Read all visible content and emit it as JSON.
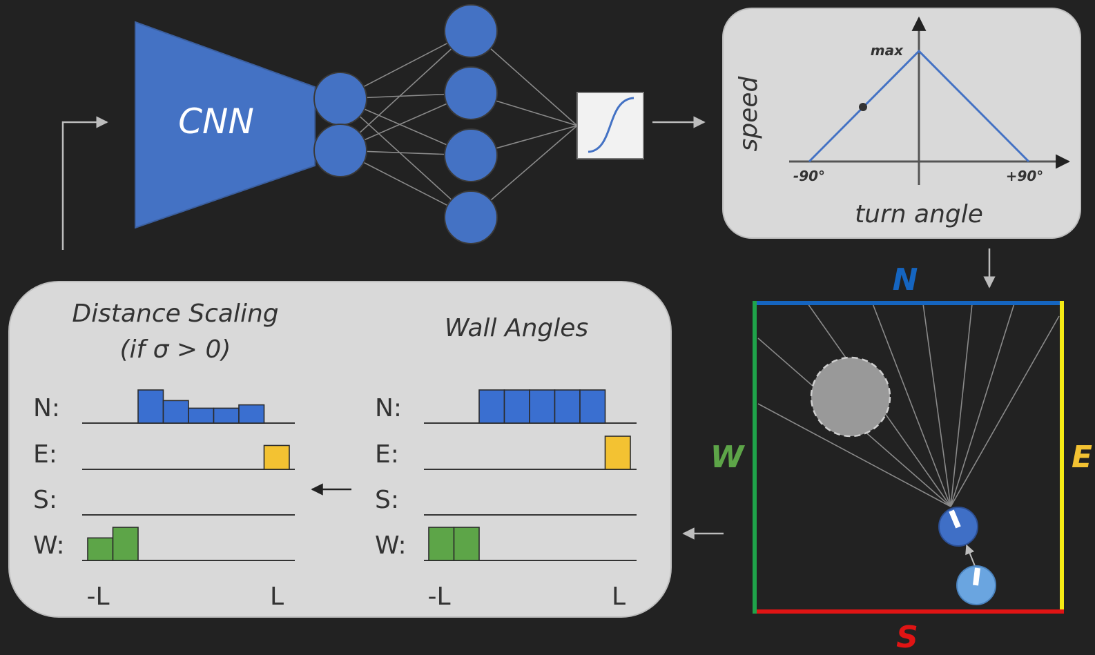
{
  "network": {
    "cnn_label": "CNN"
  },
  "speed_plot": {
    "y_label": "speed",
    "x_label": "turn angle",
    "peak_label": "max",
    "left_tick": "-90°",
    "right_tick": "+90°"
  },
  "arena": {
    "north": "N",
    "east": "E",
    "south": "S",
    "west": "W",
    "colors": {
      "north": "#1565c0",
      "east": "#f5ea14",
      "south": "#e01414",
      "west": "#1fa34a"
    }
  },
  "histograms": {
    "distance_title_1": "Distance Scaling",
    "distance_title_2": "(if σ > 0)",
    "wall_title": "Wall Angles",
    "row_labels": [
      "N:",
      "E:",
      "S:",
      "W:"
    ],
    "axis_min": "-L",
    "axis_max": "L",
    "bin_count": 8,
    "distance": {
      "N": [
        0,
        0,
        1.0,
        0.68,
        0.45,
        0.45,
        0.55,
        0
      ],
      "E": [
        0,
        0,
        0,
        0,
        0,
        0,
        0,
        0.72
      ],
      "S": [
        0,
        0,
        0,
        0,
        0,
        0,
        0,
        0
      ],
      "W": [
        0.68,
        1.0,
        0,
        0,
        0,
        0,
        0,
        0
      ]
    },
    "wall": {
      "N": [
        0,
        0,
        1,
        1,
        1,
        1,
        1,
        0
      ],
      "E": [
        0,
        0,
        0,
        0,
        0,
        0,
        0,
        1
      ],
      "S": [
        0,
        0,
        0,
        0,
        0,
        0,
        0,
        0
      ],
      "W": [
        1,
        1,
        0,
        0,
        0,
        0,
        0,
        0
      ]
    },
    "colors": {
      "N": "#3a6fd0",
      "E": "#f3c232",
      "S": "#888888",
      "W": "#5da548"
    }
  }
}
